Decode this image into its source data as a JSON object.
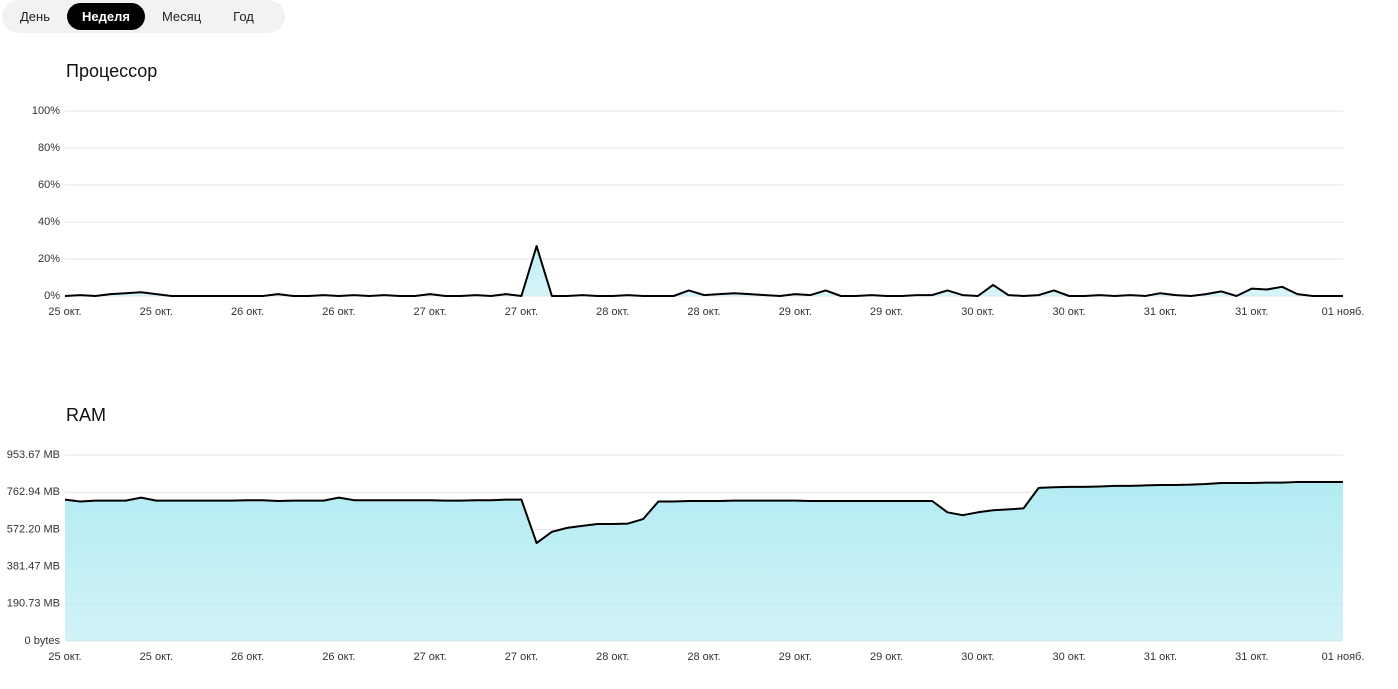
{
  "tabs": [
    {
      "label": "День"
    },
    {
      "label": "Неделя",
      "selected": true
    },
    {
      "label": "Месяц"
    },
    {
      "label": "Год"
    }
  ],
  "chart_data": [
    {
      "type": "area",
      "title": "Процессор",
      "color": "#000000",
      "fill": "#bdeef5",
      "grid": true,
      "categories": [
        "25 окт.",
        null,
        null,
        null,
        null,
        null,
        "25 окт.",
        null,
        null,
        null,
        null,
        null,
        "26 окт.",
        null,
        null,
        null,
        null,
        null,
        "26 окт.",
        null,
        null,
        null,
        null,
        null,
        "27 окт.",
        null,
        null,
        null,
        null,
        null,
        "27 окт.",
        null,
        null,
        null,
        null,
        null,
        "28 окт.",
        null,
        null,
        null,
        null,
        null,
        "28 окт.",
        null,
        null,
        null,
        null,
        null,
        "29 окт.",
        null,
        null,
        null,
        null,
        null,
        "29 окт.",
        null,
        null,
        null,
        null,
        null,
        "30 окт.",
        null,
        null,
        null,
        null,
        null,
        "30 окт.",
        null,
        null,
        null,
        null,
        null,
        "31 окт.",
        null,
        null,
        null,
        null,
        null,
        "31 окт.",
        null,
        null,
        null,
        null,
        null,
        "01 нояб."
      ],
      "values": [
        0,
        0.5,
        0,
        1,
        1.5,
        2,
        1,
        0,
        0,
        0,
        0,
        0,
        0,
        0,
        1,
        0,
        0,
        0.5,
        0,
        0.5,
        0,
        0.5,
        0,
        0,
        1,
        0,
        0,
        0.5,
        0,
        1,
        0,
        27,
        0,
        0,
        0.5,
        0,
        0,
        0.5,
        0,
        0,
        0,
        3,
        0.5,
        1,
        1.5,
        1,
        0.5,
        0,
        1,
        0.5,
        3,
        0,
        0,
        0.5,
        0,
        0,
        0.5,
        0.5,
        3,
        0.5,
        0,
        6,
        0.5,
        0,
        0.5,
        3,
        0,
        0,
        0.5,
        0,
        0.5,
        0,
        1.5,
        0.5,
        0,
        1,
        2.5,
        0,
        4,
        3.5,
        5,
        1,
        0,
        0,
        0
      ],
      "ylim": [
        0,
        100
      ],
      "yticks": [
        {
          "value": 0,
          "label": "0%"
        },
        {
          "value": 20,
          "label": "20%"
        },
        {
          "value": 40,
          "label": "40%"
        },
        {
          "value": 60,
          "label": "60%"
        },
        {
          "value": 80,
          "label": "80%"
        },
        {
          "value": 100,
          "label": "100%"
        }
      ]
    },
    {
      "type": "area",
      "title": "RAM",
      "color": "#000000",
      "fill": "#b3ebf3",
      "grid": true,
      "categories": [
        "25 окт.",
        null,
        null,
        null,
        null,
        null,
        "25 окт.",
        null,
        null,
        null,
        null,
        null,
        "26 окт.",
        null,
        null,
        null,
        null,
        null,
        "26 окт.",
        null,
        null,
        null,
        null,
        null,
        "27 окт.",
        null,
        null,
        null,
        null,
        null,
        "27 окт.",
        null,
        null,
        null,
        null,
        null,
        "28 окт.",
        null,
        null,
        null,
        null,
        null,
        "28 окт.",
        null,
        null,
        null,
        null,
        null,
        "29 окт.",
        null,
        null,
        null,
        null,
        null,
        "29 окт.",
        null,
        null,
        null,
        null,
        null,
        "30 окт.",
        null,
        null,
        null,
        null,
        null,
        "30 окт.",
        null,
        null,
        null,
        null,
        null,
        "31 окт.",
        null,
        null,
        null,
        null,
        null,
        "31 окт.",
        null,
        null,
        null,
        null,
        null,
        "01 нояб."
      ],
      "values": [
        725,
        715,
        720,
        720,
        720,
        735,
        720,
        720,
        720,
        720,
        720,
        720,
        722,
        722,
        718,
        720,
        720,
        720,
        735,
        722,
        722,
        722,
        722,
        722,
        722,
        720,
        720,
        722,
        722,
        725,
        725,
        502,
        560,
        580,
        590,
        600,
        600,
        602,
        625,
        715,
        715,
        718,
        718,
        718,
        720,
        720,
        720,
        720,
        720,
        718,
        718,
        718,
        718,
        718,
        718,
        718,
        718,
        718,
        660,
        645,
        660,
        670,
        675,
        680,
        785,
        788,
        790,
        790,
        792,
        795,
        795,
        798,
        800,
        800,
        802,
        805,
        810,
        810,
        810,
        812,
        812,
        815,
        815,
        815,
        815
      ],
      "ylim": [
        0,
        953.67
      ],
      "yticks": [
        {
          "value": 0,
          "label": "0 bytes"
        },
        {
          "value": 190.73,
          "label": "190.73 MB"
        },
        {
          "value": 381.47,
          "label": "381.47 MB"
        },
        {
          "value": 572.2,
          "label": "572.20 MB"
        },
        {
          "value": 762.94,
          "label": "762.94 MB"
        },
        {
          "value": 953.67,
          "label": "953.67 MB"
        }
      ]
    }
  ]
}
